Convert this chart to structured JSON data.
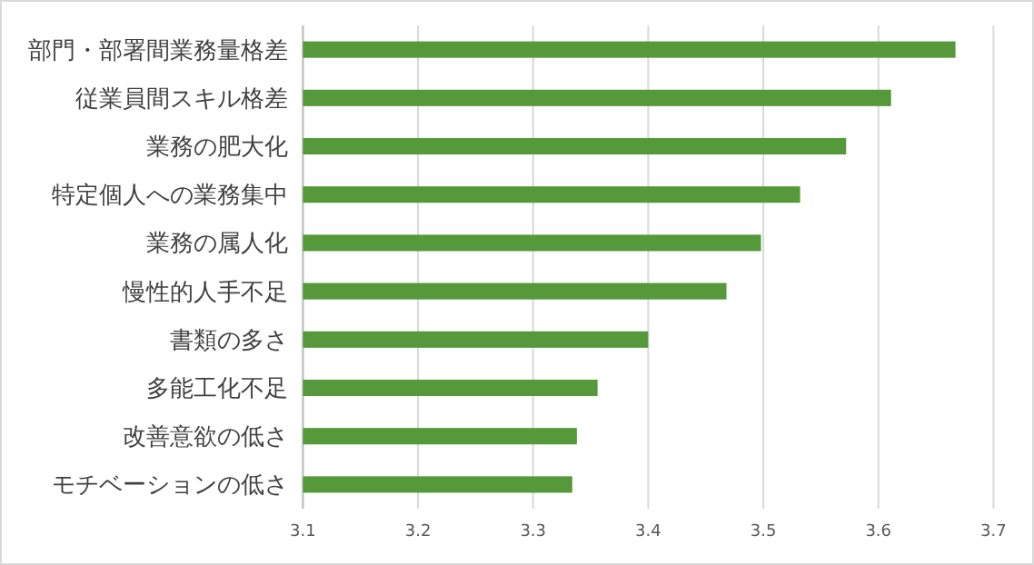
{
  "chart_data": {
    "type": "bar",
    "orientation": "horizontal",
    "categories": [
      "部門・部署間業務量格差",
      "従業員間スキル格差",
      "業務の肥大化",
      "特定個人への業務集中",
      "業務の属人化",
      "慢性的人手不足",
      "書類の多さ",
      "多能工化不足",
      "改善意欲の低さ",
      "モチベーションの低さ"
    ],
    "values": [
      3.667,
      3.611,
      3.572,
      3.532,
      3.498,
      3.468,
      3.4,
      3.356,
      3.338,
      3.334
    ],
    "color": "#56993a",
    "xlim": [
      3.1,
      3.7
    ],
    "xticks": [
      3.1,
      3.2,
      3.3,
      3.4,
      3.5,
      3.6,
      3.7
    ],
    "grid": "x"
  }
}
